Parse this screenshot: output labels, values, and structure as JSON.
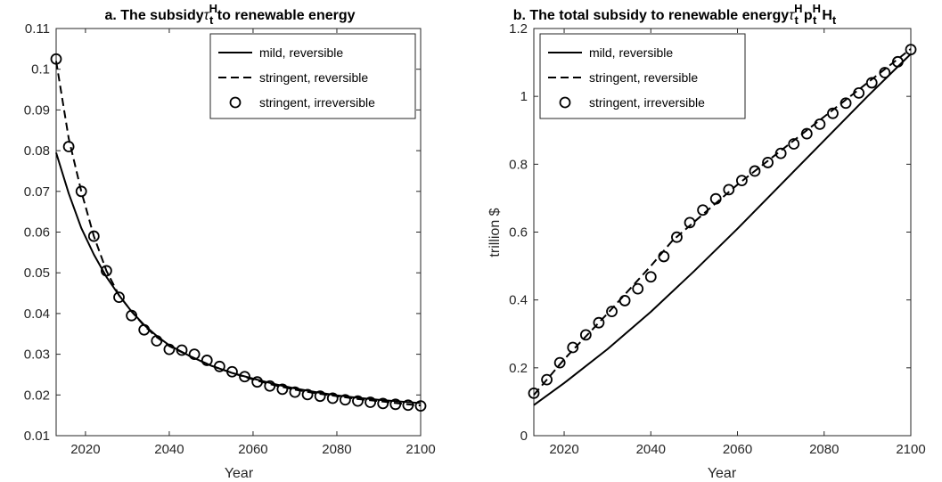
{
  "chart_data": [
    {
      "type": "line",
      "title": "a. The subsidy",
      "title_symbol": "τ",
      "title_sub": "t",
      "title_sup": "H",
      "title_suffix": " to renewable energy",
      "xlabel": "Year",
      "ylabel": "",
      "xlim": [
        2013,
        2100
      ],
      "ylim": [
        0.01,
        0.11
      ],
      "xticks": [
        2020,
        2040,
        2060,
        2080,
        2100
      ],
      "yticks": [
        0.01,
        0.02,
        0.03,
        0.04,
        0.05,
        0.06,
        0.07,
        0.08,
        0.09,
        0.1,
        0.11
      ],
      "ytick_labels": [
        "0.01",
        "0.02",
        "0.03",
        "0.04",
        "0.05",
        "0.06",
        "0.07",
        "0.08",
        "0.09",
        "0.1",
        "0.11"
      ],
      "grid": false,
      "legend_position": "top-right",
      "series": [
        {
          "name": "mild, reversible",
          "style": "solid",
          "x": [
            2013,
            2016,
            2019,
            2022,
            2025,
            2028,
            2031,
            2034,
            2037,
            2040,
            2045,
            2050,
            2055,
            2060,
            2065,
            2070,
            2075,
            2080,
            2085,
            2090,
            2095,
            2100
          ],
          "y": [
            0.0795,
            0.0695,
            0.061,
            0.0545,
            0.049,
            0.0445,
            0.0405,
            0.0372,
            0.0345,
            0.0322,
            0.0295,
            0.0272,
            0.0254,
            0.024,
            0.0227,
            0.0216,
            0.0207,
            0.0199,
            0.0193,
            0.0188,
            0.0184,
            0.018
          ]
        },
        {
          "name": "stringent, reversible",
          "style": "dashed",
          "x": [
            2013,
            2016,
            2019,
            2022,
            2025,
            2028,
            2031,
            2034,
            2037,
            2040,
            2045,
            2050,
            2055,
            2060,
            2065,
            2070,
            2075,
            2080,
            2085,
            2090,
            2095,
            2100
          ],
          "y": [
            0.102,
            0.083,
            0.07,
            0.059,
            0.0505,
            0.0445,
            0.0405,
            0.037,
            0.0342,
            0.032,
            0.0295,
            0.0272,
            0.0254,
            0.0238,
            0.0224,
            0.0213,
            0.0204,
            0.0197,
            0.019,
            0.0185,
            0.0179,
            0.0174
          ]
        },
        {
          "name": "stringent, irreversible",
          "style": "circles",
          "x": [
            2013,
            2016,
            2019,
            2022,
            2025,
            2028,
            2031,
            2034,
            2037,
            2040,
            2043,
            2046,
            2049,
            2052,
            2055,
            2058,
            2061,
            2064,
            2067,
            2070,
            2073,
            2076,
            2079,
            2082,
            2085,
            2088,
            2091,
            2094,
            2097,
            2100
          ],
          "y": [
            0.1025,
            0.081,
            0.07,
            0.059,
            0.0505,
            0.044,
            0.0395,
            0.036,
            0.0333,
            0.0312,
            0.031,
            0.03,
            0.0285,
            0.027,
            0.0257,
            0.0245,
            0.0232,
            0.0222,
            0.0214,
            0.0207,
            0.0201,
            0.0197,
            0.0192,
            0.0188,
            0.0185,
            0.0182,
            0.0179,
            0.0177,
            0.0175,
            0.0173
          ]
        }
      ]
    },
    {
      "type": "line",
      "title": "b. The total subsidy to renewable energy",
      "title_symbol": "τ",
      "title_sub": "t",
      "title_sup": "H",
      "title_p": "p",
      "title_H": "H",
      "xlabel": "Year",
      "ylabel": "trillion $",
      "xlim": [
        2013,
        2100
      ],
      "ylim": [
        0,
        1.2
      ],
      "xticks": [
        2020,
        2040,
        2060,
        2080,
        2100
      ],
      "yticks": [
        0,
        0.2,
        0.4,
        0.6,
        0.8,
        1,
        1.2
      ],
      "ytick_labels": [
        "0",
        "0.2",
        "0.4",
        "0.6",
        "0.8",
        "1",
        "1.2"
      ],
      "grid": false,
      "legend_position": "top-left",
      "series": [
        {
          "name": "mild, reversible",
          "style": "solid",
          "x": [
            2013,
            2020,
            2030,
            2040,
            2050,
            2060,
            2070,
            2080,
            2090,
            2100
          ],
          "y": [
            0.09,
            0.155,
            0.255,
            0.365,
            0.485,
            0.61,
            0.74,
            0.87,
            1.0,
            1.125
          ]
        },
        {
          "name": "stringent, reversible",
          "style": "dashed",
          "x": [
            2013,
            2020,
            2030,
            2040,
            2045,
            2050,
            2060,
            2070,
            2080,
            2090,
            2100
          ],
          "y": [
            0.12,
            0.225,
            0.36,
            0.5,
            0.575,
            0.63,
            0.74,
            0.84,
            0.94,
            1.04,
            1.14
          ]
        },
        {
          "name": "stringent, irreversible",
          "style": "circles",
          "x": [
            2013,
            2016,
            2019,
            2022,
            2025,
            2028,
            2031,
            2034,
            2037,
            2040,
            2043,
            2046,
            2049,
            2052,
            2055,
            2058,
            2061,
            2064,
            2067,
            2070,
            2073,
            2076,
            2079,
            2082,
            2085,
            2088,
            2091,
            2094,
            2097,
            2100
          ],
          "y": [
            0.125,
            0.165,
            0.215,
            0.26,
            0.297,
            0.333,
            0.366,
            0.398,
            0.433,
            0.468,
            0.528,
            0.585,
            0.628,
            0.665,
            0.698,
            0.725,
            0.752,
            0.78,
            0.805,
            0.832,
            0.86,
            0.89,
            0.918,
            0.95,
            0.98,
            1.01,
            1.04,
            1.07,
            1.102,
            1.138
          ]
        }
      ]
    }
  ]
}
